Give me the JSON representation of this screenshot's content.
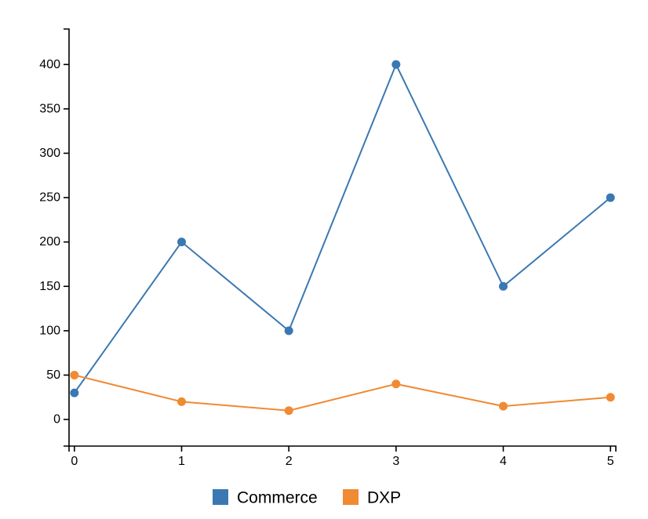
{
  "chart_data": {
    "type": "line",
    "title": "",
    "xlabel": "",
    "ylabel": "",
    "x": [
      0,
      1,
      2,
      3,
      4,
      5
    ],
    "x_ticks": [
      "0",
      "1",
      "2",
      "3",
      "4",
      "5"
    ],
    "xlim": [
      -0.05,
      5.05
    ],
    "ylim": [
      -30,
      440
    ],
    "y_ticks": [
      0,
      50,
      100,
      150,
      200,
      250,
      300,
      350,
      400
    ],
    "grid": false,
    "legend_position": "bottom-center",
    "series": [
      {
        "name": "Commerce",
        "color": "#3a78b2",
        "values": [
          30,
          200,
          100,
          400,
          150,
          250
        ]
      },
      {
        "name": "DXP",
        "color": "#f08a33",
        "values": [
          50,
          20,
          10,
          40,
          15,
          25
        ]
      }
    ]
  }
}
